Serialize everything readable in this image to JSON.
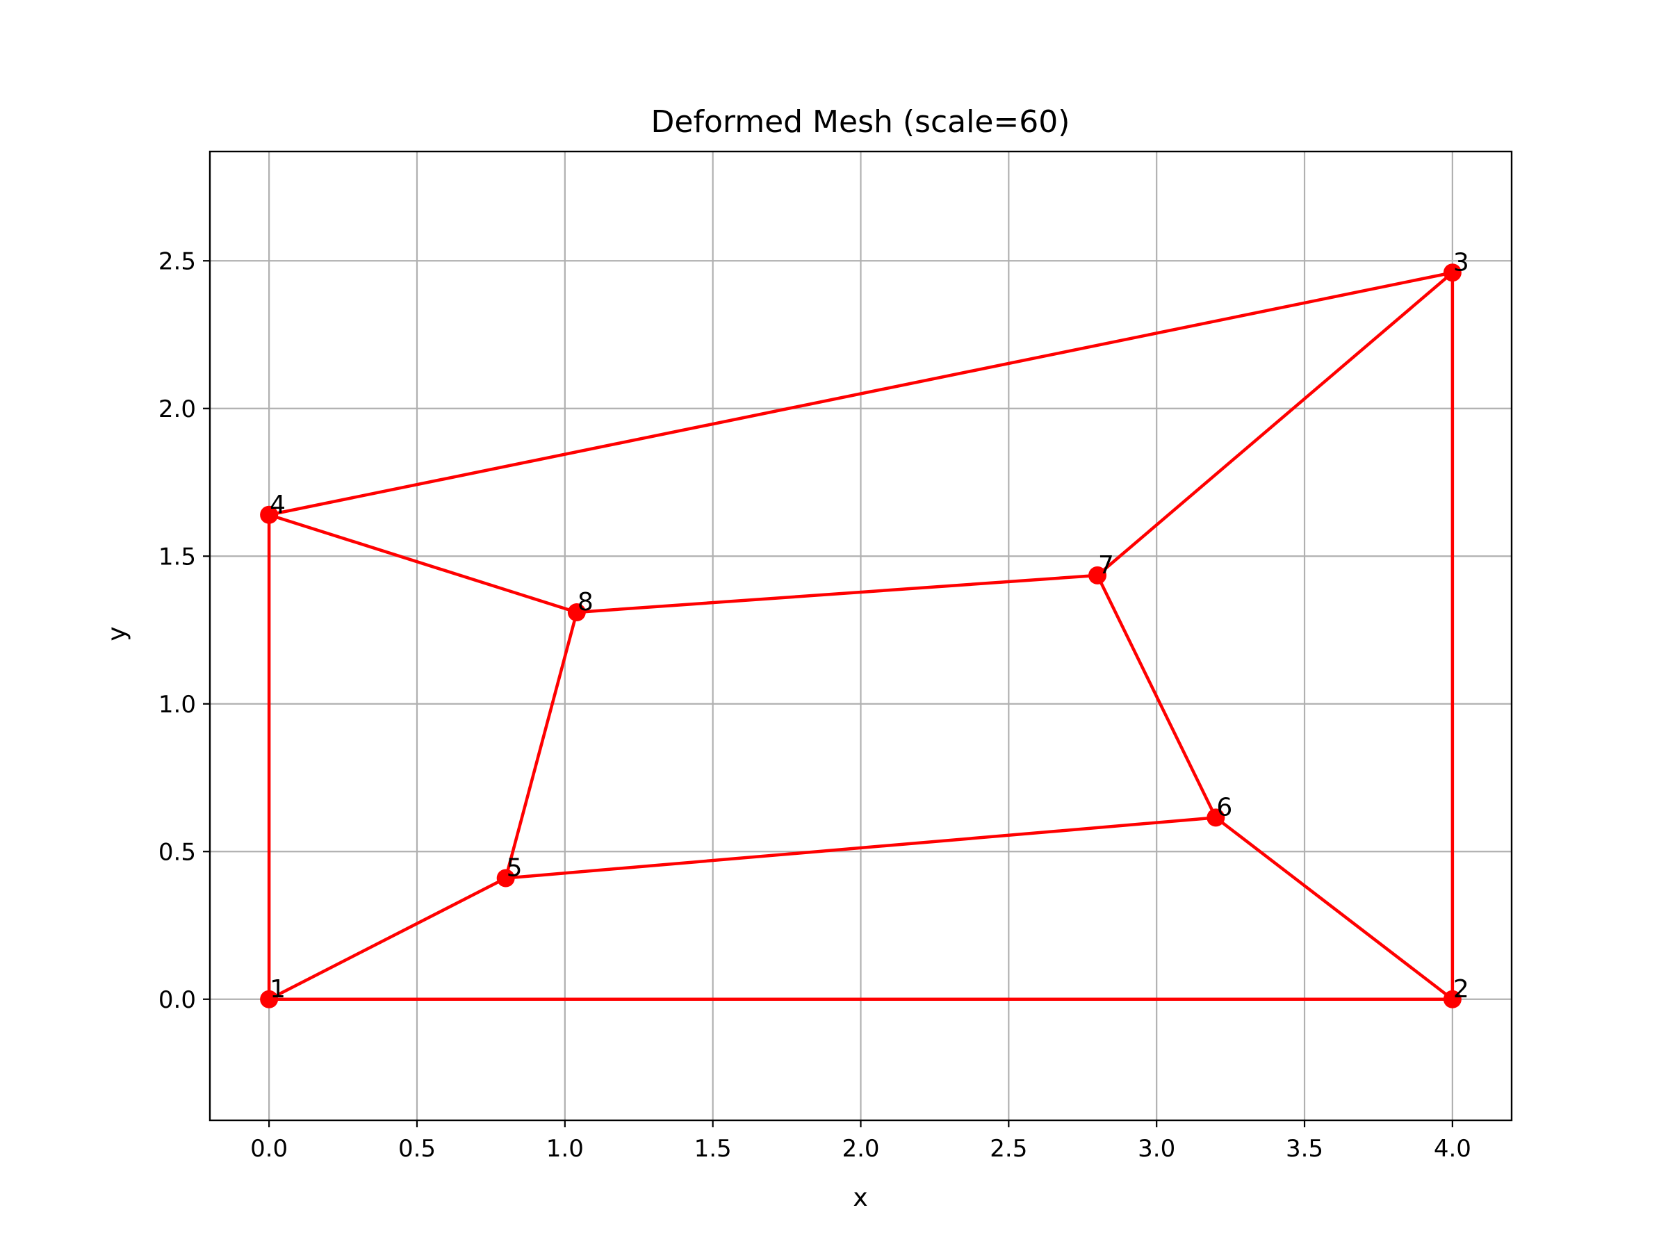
{
  "chart_data": {
    "type": "line",
    "title": "Deformed Mesh (scale=60)",
    "xlabel": "x",
    "ylabel": "y",
    "xlim": [
      -0.2,
      4.2
    ],
    "ylim": [
      -0.41,
      2.87
    ],
    "xticks": [
      {
        "value": 0.0,
        "label": "0.0"
      },
      {
        "value": 0.5,
        "label": "0.5"
      },
      {
        "value": 1.0,
        "label": "1.0"
      },
      {
        "value": 1.5,
        "label": "1.5"
      },
      {
        "value": 2.0,
        "label": "2.0"
      },
      {
        "value": 2.5,
        "label": "2.5"
      },
      {
        "value": 3.0,
        "label": "3.0"
      },
      {
        "value": 3.5,
        "label": "3.5"
      },
      {
        "value": 4.0,
        "label": "4.0"
      }
    ],
    "yticks": [
      {
        "value": 0.0,
        "label": "0.0"
      },
      {
        "value": 0.5,
        "label": "0.5"
      },
      {
        "value": 1.0,
        "label": "1.0"
      },
      {
        "value": 1.5,
        "label": "1.5"
      },
      {
        "value": 2.0,
        "label": "2.0"
      },
      {
        "value": 2.5,
        "label": "2.5"
      }
    ],
    "grid": true,
    "color": "#ff0000",
    "nodes": [
      {
        "id": "1",
        "x": 0.0,
        "y": 0.0
      },
      {
        "id": "2",
        "x": 4.0,
        "y": 0.0
      },
      {
        "id": "3",
        "x": 4.0,
        "y": 2.46
      },
      {
        "id": "4",
        "x": 0.0,
        "y": 1.64
      },
      {
        "id": "5",
        "x": 0.8,
        "y": 0.41
      },
      {
        "id": "6",
        "x": 3.2,
        "y": 0.615
      },
      {
        "id": "7",
        "x": 2.8,
        "y": 1.435
      },
      {
        "id": "8",
        "x": 1.04,
        "y": 1.31
      }
    ],
    "edges": [
      [
        "1",
        "2"
      ],
      [
        "2",
        "3"
      ],
      [
        "3",
        "4"
      ],
      [
        "4",
        "1"
      ],
      [
        "1",
        "5"
      ],
      [
        "5",
        "6"
      ],
      [
        "6",
        "2"
      ],
      [
        "6",
        "7"
      ],
      [
        "7",
        "3"
      ],
      [
        "7",
        "8"
      ],
      [
        "8",
        "4"
      ],
      [
        "8",
        "5"
      ]
    ]
  }
}
